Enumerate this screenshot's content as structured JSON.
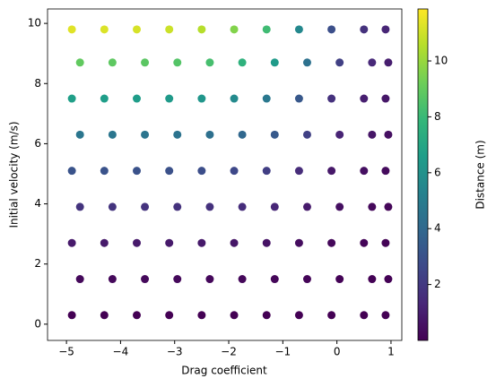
{
  "chart_data": {
    "type": "scatter",
    "xlabel": "Drag coefficient",
    "ylabel": "Initial velocity (m/s)",
    "colorbar_label": "Distance (m)",
    "colormap": [
      "#440154",
      "#482878",
      "#3e4989",
      "#31688e",
      "#26828e",
      "#1f9e89",
      "#35b779",
      "#6ece58",
      "#b5de2b",
      "#fde725"
    ],
    "xlim": [
      -5.35,
      1.2
    ],
    "ylim": [
      -0.54,
      10.48
    ],
    "clim": [
      0,
      11.86
    ],
    "xticks": [
      {
        "value": -5,
        "label": "−5"
      },
      {
        "value": -4,
        "label": "−4"
      },
      {
        "value": -3,
        "label": "−3"
      },
      {
        "value": -2,
        "label": "−2"
      },
      {
        "value": -1,
        "label": "−1"
      },
      0,
      1
    ],
    "yticks": [
      0,
      2,
      4,
      6,
      8,
      10
    ],
    "cticks": [
      2,
      4,
      6,
      8,
      10
    ],
    "x": [
      -4.9,
      -4.3,
      -3.7,
      -3.1,
      -2.5,
      -1.9,
      -1.3,
      -0.7,
      -0.1,
      0.5,
      0.9,
      -4.75,
      -4.15,
      -3.55,
      -2.95,
      -2.35,
      -1.75,
      -1.15,
      -0.55,
      0.05,
      0.65,
      0.95,
      -4.9,
      -4.3,
      -3.7,
      -3.1,
      -2.5,
      -1.9,
      -1.3,
      -0.7,
      -0.1,
      0.5,
      0.9,
      -4.75,
      -4.15,
      -3.55,
      -2.95,
      -2.35,
      -1.75,
      -1.15,
      -0.55,
      0.05,
      0.65,
      0.95,
      -4.9,
      -4.3,
      -3.7,
      -3.1,
      -2.5,
      -1.9,
      -1.3,
      -0.7,
      -0.1,
      0.5,
      0.9,
      -4.75,
      -4.15,
      -3.55,
      -2.95,
      -2.35,
      -1.75,
      -1.15,
      -0.55,
      0.05,
      0.65,
      0.95,
      -4.9,
      -4.3,
      -3.7,
      -3.1,
      -2.5,
      -1.9,
      -1.3,
      -0.7,
      -0.1,
      0.5,
      0.9,
      -4.75,
      -4.15,
      -3.55,
      -2.95,
      -2.35,
      -1.75,
      -1.15,
      -0.55,
      0.05,
      0.65,
      0.95,
      -4.9,
      -4.3,
      -3.7,
      -3.1,
      -2.5,
      -1.9,
      -1.3,
      -0.7,
      -0.1,
      0.5,
      0.9
    ],
    "values": [
      0.3,
      0.3,
      0.3,
      0.3,
      0.3,
      0.3,
      0.3,
      0.3,
      0.3,
      0.3,
      0.3,
      1.5,
      1.5,
      1.5,
      1.5,
      1.5,
      1.5,
      1.5,
      1.5,
      1.5,
      1.5,
      1.5,
      2.7,
      2.7,
      2.7,
      2.7,
      2.7,
      2.7,
      2.7,
      2.7,
      2.7,
      2.7,
      2.7,
      3.9,
      3.9,
      3.9,
      3.9,
      3.9,
      3.9,
      3.9,
      3.9,
      3.9,
      3.9,
      3.9,
      5.1,
      5.1,
      5.1,
      5.1,
      5.1,
      5.1,
      5.1,
      5.1,
      5.1,
      5.1,
      5.1,
      6.3,
      6.3,
      6.3,
      6.3,
      6.3,
      6.3,
      6.3,
      6.3,
      6.3,
      6.3,
      6.3,
      7.5,
      7.5,
      7.5,
      7.5,
      7.5,
      7.5,
      7.5,
      7.5,
      7.5,
      7.5,
      7.5,
      8.7,
      8.7,
      8.7,
      8.7,
      8.7,
      8.7,
      8.7,
      8.7,
      8.7,
      8.7,
      8.7,
      9.8,
      9.8,
      9.8,
      9.8,
      9.8,
      9.8,
      9.8,
      9.8,
      9.8,
      9.8,
      9.8
    ],
    "distance": [
      0.01,
      0.01,
      0.01,
      0.01,
      0.01,
      0.01,
      0.01,
      0.01,
      0,
      0,
      0,
      0.27,
      0.26,
      0.26,
      0.26,
      0.25,
      0.23,
      0.19,
      0.13,
      0.07,
      0.04,
      0.03,
      0.86,
      0.85,
      0.85,
      0.83,
      0.8,
      0.73,
      0.62,
      0.42,
      0.22,
      0.13,
      0.09,
      1.79,
      1.78,
      1.76,
      1.73,
      1.67,
      1.52,
      1.29,
      0.88,
      0.46,
      0.27,
      0.2,
      3.07,
      3.04,
      3.02,
      2.97,
      2.86,
      2.6,
      2.21,
      1.51,
      0.78,
      0.47,
      0.34,
      4.68,
      4.64,
      4.6,
      4.52,
      4.37,
      3.97,
      3.37,
      2.3,
      1.19,
      0.71,
      0.52,
      6.64,
      6.58,
      6.53,
      6.41,
      6.19,
      5.63,
      4.78,
      3.26,
      1.69,
      1.01,
      0.73,
      8.93,
      8.86,
      8.78,
      8.63,
      8.33,
      7.57,
      6.43,
      4.39,
      2.27,
      1.36,
      0.98,
      11.33,
      11.24,
      11.14,
      10.95,
      10.56,
      9.6,
      8.16,
      5.57,
      2.88,
      1.73,
      1.25
    ]
  }
}
